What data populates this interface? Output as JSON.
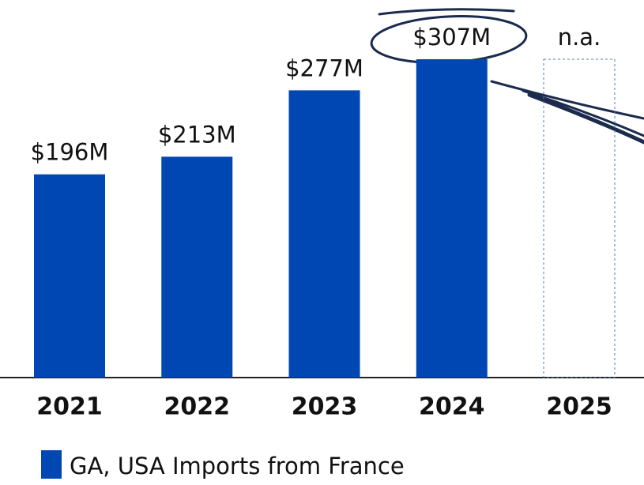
{
  "chart_data": {
    "type": "bar",
    "categories": [
      "2021",
      "2022",
      "2023",
      "2024",
      "2025"
    ],
    "values": [
      196,
      213,
      277,
      307,
      null
    ],
    "value_labels": [
      "$196M",
      "$213M",
      "$277M",
      "$307M",
      "n.a."
    ],
    "series_name": "GA, USA Imports from France",
    "color": "#0047b3"
  }
}
